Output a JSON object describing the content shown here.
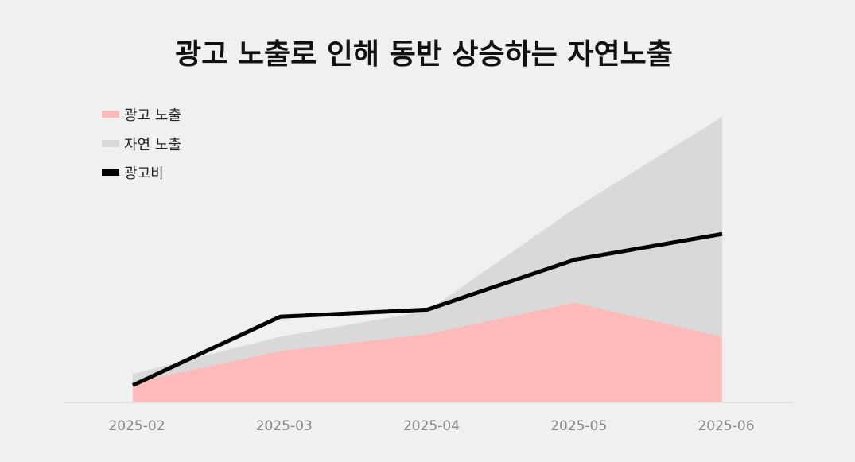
{
  "chart_data": {
    "type": "area",
    "title": "광고 노출로 인해 동반 상승하는 자연노출",
    "categories": [
      "2025-02",
      "2025-03",
      "2025-04",
      "2025-05",
      "2025-06"
    ],
    "series": [
      {
        "name": "광고 노출",
        "kind": "area",
        "color": "#ffbaba",
        "values": [
          7,
          18,
          24,
          35,
          23
        ]
      },
      {
        "name": "자연 노출",
        "kind": "area-stacked",
        "color": "#d9d9d9",
        "values": [
          3,
          5,
          8,
          33,
          77
        ]
      },
      {
        "name": "광고비",
        "kind": "line",
        "color": "#000000",
        "values": [
          6,
          30,
          32.5,
          50,
          59
        ]
      }
    ],
    "ylim": [
      0,
      100
    ],
    "legend": "top-left",
    "grid": false
  }
}
